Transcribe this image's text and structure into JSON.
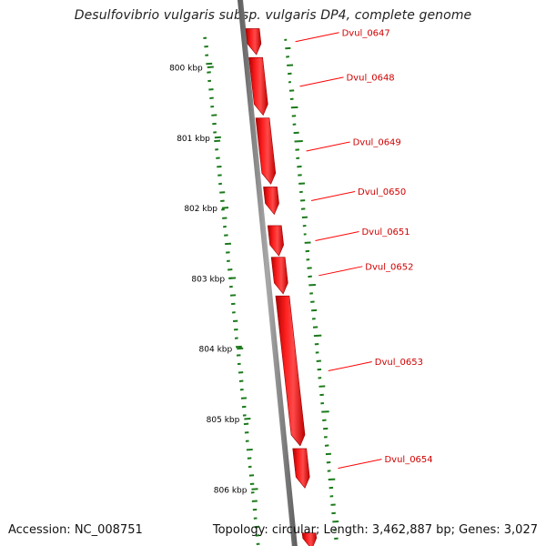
{
  "title": "Desulfovibrio vulgaris subsp. vulgaris DP4, complete genome",
  "accession_text": "Accession: NC_008751",
  "topology": "circular",
  "length": "3,462,887 bp",
  "genes": "3,027",
  "summary_labels": {
    "topology_prefix": "Topology: ",
    "length_prefix": "; Length: ",
    "genes_prefix": "; Genes: "
  },
  "colors": {
    "backbone": "#808080",
    "gene": "#ff0000",
    "gene_label": "#d00000",
    "gc_skew": "#1a7a1a",
    "tick_label": "#000000"
  },
  "chart_data": {
    "type": "genome-map",
    "start_kbp": 799.5,
    "end_kbp": 806.8,
    "ticks": [
      {
        "kbp": 800,
        "label": "800 kbp"
      },
      {
        "kbp": 801,
        "label": "801 kbp"
      },
      {
        "kbp": 802,
        "label": "802 kbp"
      },
      {
        "kbp": 803,
        "label": "803 kbp"
      },
      {
        "kbp": 804,
        "label": "804 kbp"
      },
      {
        "kbp": 805,
        "label": "805 kbp"
      },
      {
        "kbp": 806,
        "label": "806 kbp"
      }
    ],
    "genes": [
      {
        "name": "Dvul_0647",
        "start_kbp": 799.45,
        "end_kbp": 799.82,
        "strand": "+"
      },
      {
        "name": "Dvul_0648",
        "start_kbp": 799.86,
        "end_kbp": 800.68,
        "strand": "+"
      },
      {
        "name": "Dvul_0649",
        "start_kbp": 800.72,
        "end_kbp": 801.66,
        "strand": "+"
      },
      {
        "name": "Dvul_0650",
        "start_kbp": 801.7,
        "end_kbp": 802.09,
        "strand": "+"
      },
      {
        "name": "Dvul_0651",
        "start_kbp": 802.25,
        "end_kbp": 802.68,
        "strand": "+"
      },
      {
        "name": "Dvul_0652",
        "start_kbp": 802.7,
        "end_kbp": 803.22,
        "strand": "+"
      },
      {
        "name": "Dvul_0653",
        "start_kbp": 803.25,
        "end_kbp": 805.38,
        "strand": "+"
      },
      {
        "name": "Dvul_0654",
        "start_kbp": 805.42,
        "end_kbp": 805.98,
        "strand": "+"
      },
      {
        "name": "",
        "start_kbp": 806.62,
        "end_kbp": 806.85,
        "strand": "+"
      }
    ],
    "gc_skew_outer": [
      0.1,
      0.5,
      0.2,
      0.6,
      0.3,
      0.1,
      0.4,
      0.2,
      0.7,
      0.3,
      0.2,
      0.5,
      0.9,
      0.3,
      0.2,
      0.4,
      0.3,
      0.6,
      0.2,
      0.4,
      0.3,
      0.5,
      0.2,
      0.1,
      0.6,
      0.3,
      0.2,
      0.4,
      0.3,
      0.7,
      0.2,
      0.3,
      0.5,
      0.2,
      0.4,
      0.8,
      0.3,
      0.2,
      0.4,
      0.3,
      0.2,
      0.6,
      0.3,
      0.2,
      0.8,
      0.3,
      0.4,
      0.2,
      0.3,
      0.5,
      0.3,
      0.2,
      0.7,
      0.3,
      0.2,
      0.4,
      0.3,
      0.6,
      0.2,
      0.3
    ],
    "gc_skew_inner": [
      0.2,
      0.3,
      0.2,
      0.6,
      0.3,
      0.2,
      0.4,
      0.3,
      0.2,
      0.5,
      0.3,
      0.2,
      0.6,
      0.2,
      0.3,
      0.4,
      0.3,
      0.2,
      0.5,
      0.3,
      0.2,
      0.4,
      0.2,
      0.3,
      0.6,
      0.3,
      0.2,
      0.4,
      0.3,
      0.2,
      0.5,
      0.3,
      0.2,
      0.4,
      0.3,
      0.2,
      0.6,
      0.3,
      0.2,
      0.4,
      0.3,
      0.2,
      0.5,
      0.3,
      0.2,
      0.4,
      0.3,
      0.2,
      0.6,
      0.3,
      0.2,
      0.4,
      0.3,
      0.2,
      0.5,
      0.3,
      0.2,
      0.4,
      0.3,
      0.2
    ]
  }
}
